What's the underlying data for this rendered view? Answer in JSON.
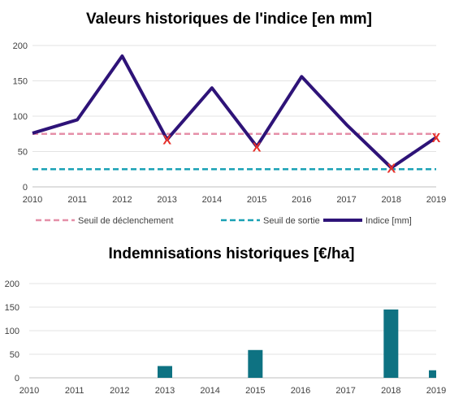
{
  "chart_data": [
    {
      "type": "line",
      "title": "Valeurs historiques de l'indice [en mm]",
      "x": [
        "2010",
        "2011",
        "2012",
        "2013",
        "2014",
        "2015",
        "2016",
        "2017",
        "2018",
        "2019"
      ],
      "ylim": [
        0,
        200
      ],
      "yticks": [
        0,
        50,
        100,
        150,
        200
      ],
      "grid": true,
      "legend_position": "bottom",
      "series": [
        {
          "name": "Seuil de déclenchement",
          "style": "dashed",
          "color": "#e58fa8",
          "values": [
            75,
            75,
            75,
            75,
            75,
            75,
            75,
            75,
            75,
            75
          ]
        },
        {
          "name": "Seuil de sortie",
          "style": "dashed",
          "color": "#1aa1b5",
          "values": [
            25,
            25,
            25,
            25,
            25,
            25,
            25,
            25,
            25,
            25
          ]
        },
        {
          "name": "Indice [mm]",
          "style": "solid",
          "color": "#2e1378",
          "values": [
            76,
            95,
            185,
            67,
            140,
            57,
            156,
            88,
            27,
            70
          ]
        }
      ],
      "markers": {
        "symbol": "X",
        "color": "#e8302a",
        "x": [
          "2013",
          "2015",
          "2018",
          "2019"
        ],
        "y": [
          67,
          57,
          27,
          70
        ]
      }
    },
    {
      "type": "bar",
      "title": "Indemnisations historiques [€/ha]",
      "categories": [
        "2010",
        "2011",
        "2012",
        "2013",
        "2014",
        "2015",
        "2016",
        "2017",
        "2018",
        "2019"
      ],
      "values": [
        0,
        0,
        0,
        25,
        0,
        59,
        0,
        0,
        145,
        16
      ],
      "ylim": [
        0,
        200
      ],
      "yticks": [
        0,
        50,
        100,
        150,
        200
      ],
      "grid": true,
      "color": "#0e7282"
    }
  ]
}
